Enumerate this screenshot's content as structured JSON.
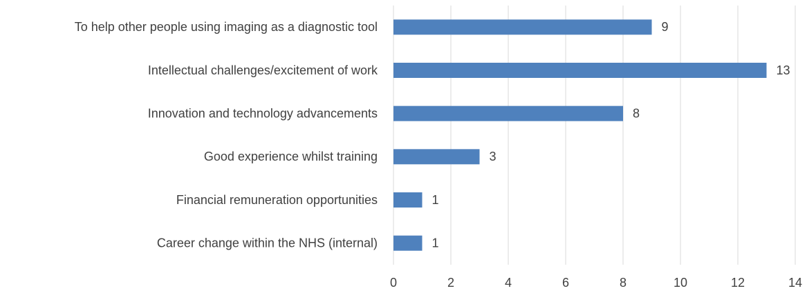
{
  "chart_data": {
    "type": "bar",
    "orientation": "horizontal",
    "categories": [
      "To help other people using imaging as a diagnostic tool",
      "Intellectual challenges/excitement of work",
      "Innovation and technology advancements",
      "Good experience whilst training",
      "Financial remuneration opportunities",
      "Career change within the NHS (internal)"
    ],
    "values": [
      9,
      13,
      8,
      3,
      1,
      1
    ],
    "color": "#4f81bd",
    "xlim": [
      0,
      14
    ],
    "xticks": [
      0,
      2,
      4,
      6,
      8,
      10,
      12,
      14
    ],
    "grid": true
  }
}
